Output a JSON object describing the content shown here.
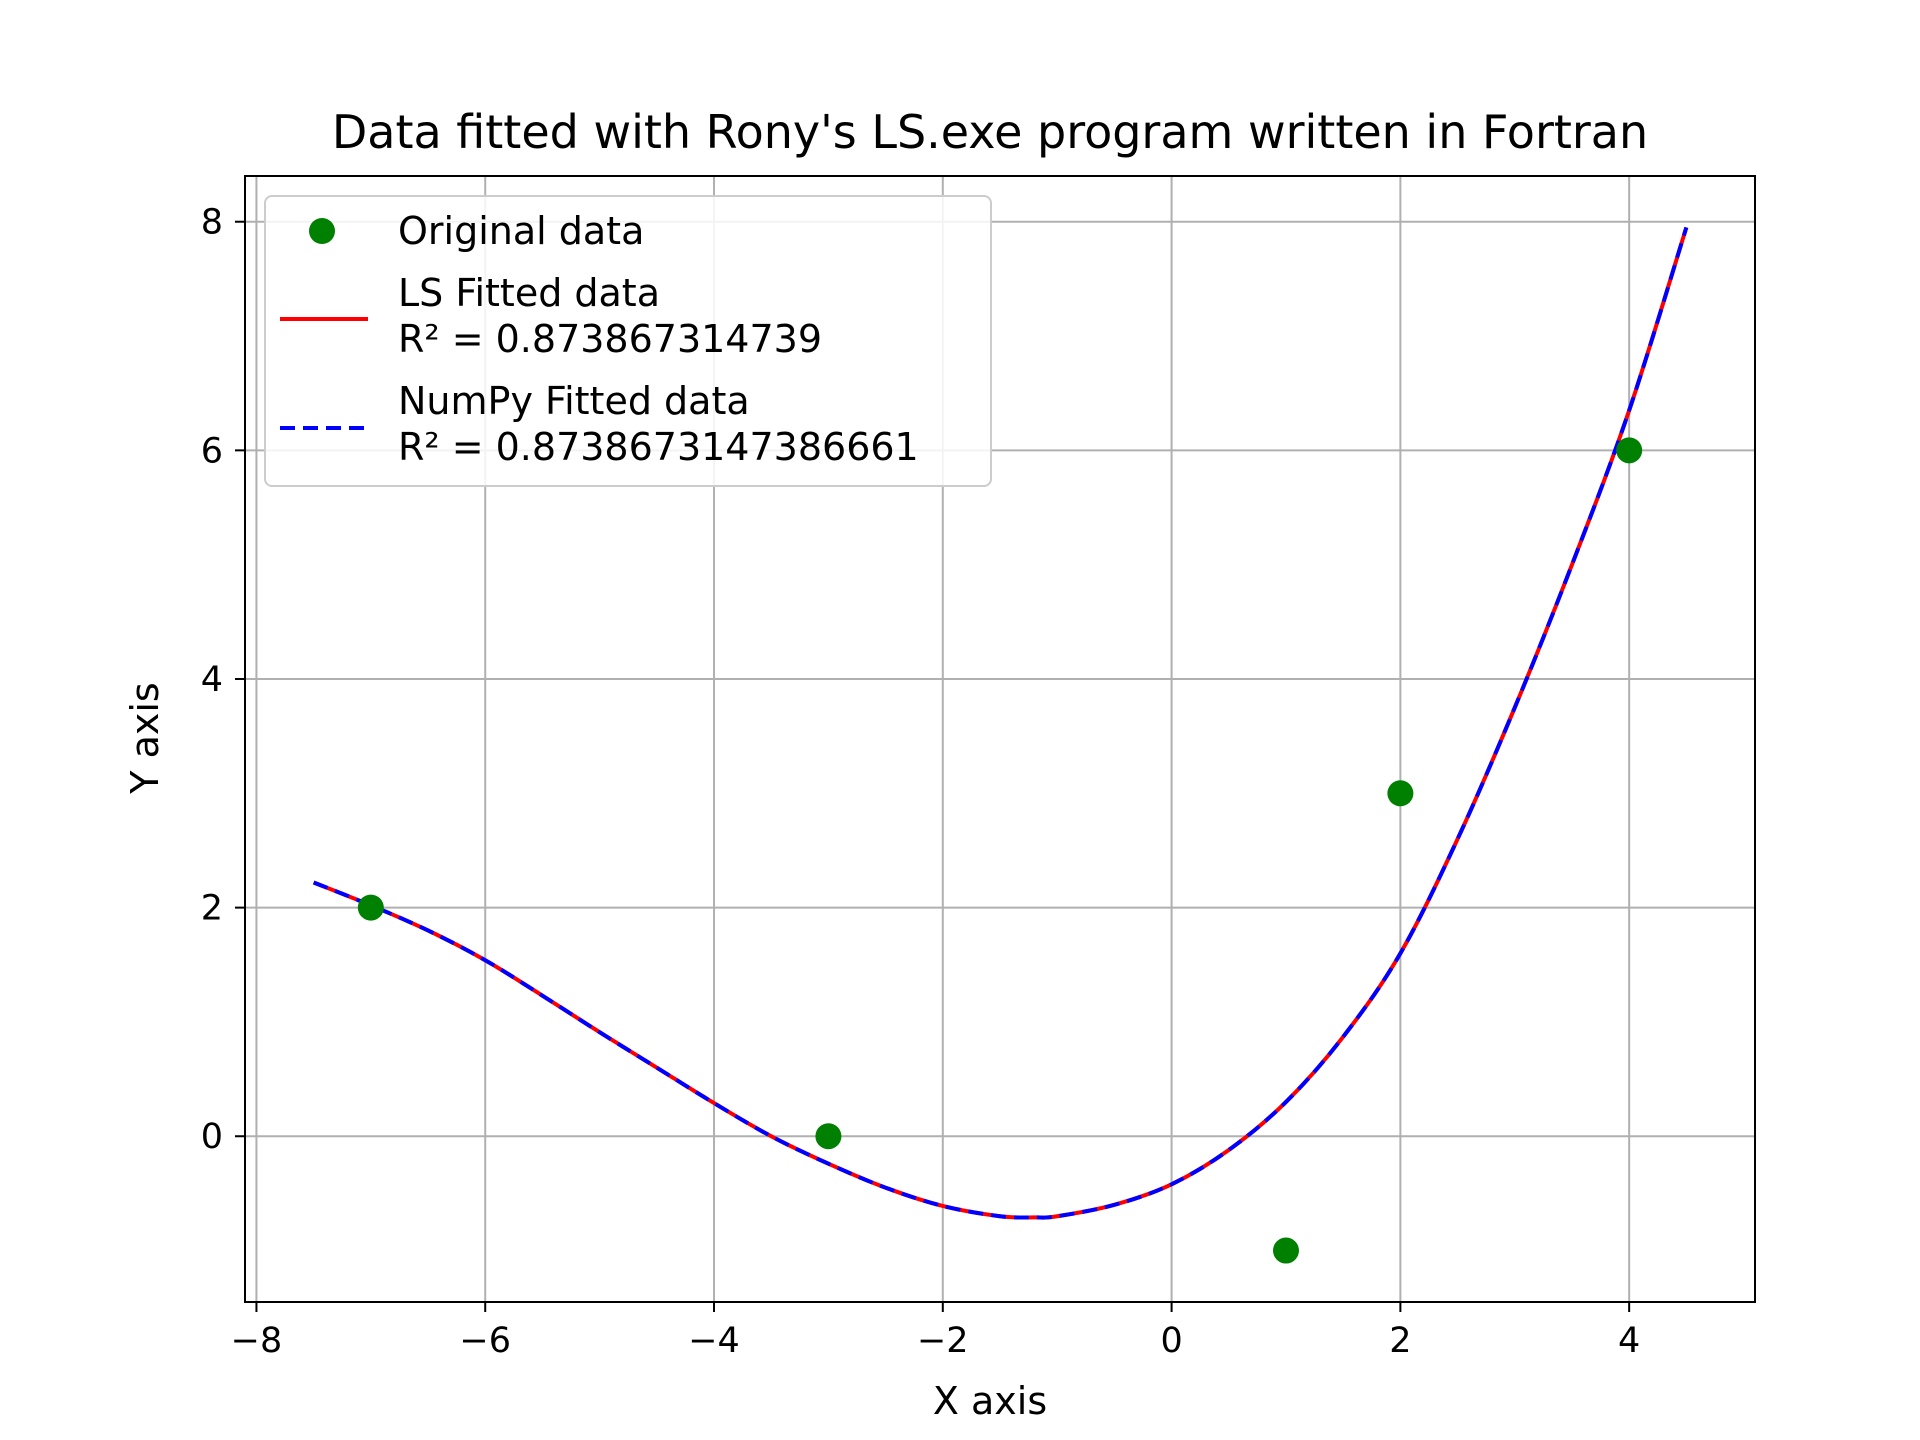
{
  "chart_data": {
    "type": "line",
    "title": "Data fitted with Rony's LS.exe program written in Fortran",
    "xlabel": "X axis",
    "ylabel": "Y axis",
    "xlim": [
      -8.1,
      5.1
    ],
    "ylim": [
      -1.45,
      8.4
    ],
    "xticks": [
      -8,
      -6,
      -4,
      -2,
      0,
      2,
      4
    ],
    "xtick_labels": [
      "−8",
      "−6",
      "−4",
      "−2",
      "0",
      "2",
      "4"
    ],
    "yticks": [
      0,
      2,
      4,
      6,
      8
    ],
    "ytick_labels": [
      "0",
      "2",
      "4",
      "6",
      "8"
    ],
    "grid": true,
    "legend_position": "upper-left",
    "series": [
      {
        "name": "Original data",
        "kind": "scatter",
        "color": "#008000",
        "x": [
          -7,
          -3,
          1,
          2,
          4
        ],
        "y": [
          2,
          0,
          -1,
          3,
          6
        ]
      },
      {
        "name": "LS Fitted data",
        "legend_sub": "R² = 0.873867314739",
        "kind": "line",
        "style": "solid",
        "color": "#ff0000",
        "x": [
          -7.5,
          -7.0,
          -6.5,
          -6.0,
          -5.5,
          -5.0,
          -4.5,
          -4.0,
          -3.5,
          -3.0,
          -2.5,
          -2.0,
          -1.5,
          -1.2,
          -1.0,
          -0.5,
          0.0,
          0.5,
          1.0,
          1.5,
          2.0,
          2.5,
          3.0,
          3.5,
          4.0,
          4.5
        ],
        "y": [
          2.22,
          2.02,
          1.8,
          1.54,
          1.23,
          0.91,
          0.6,
          0.29,
          0.0,
          -0.24,
          -0.45,
          -0.61,
          -0.7,
          -0.71,
          -0.7,
          -0.6,
          -0.42,
          -0.12,
          0.3,
          0.87,
          1.6,
          2.6,
          3.75,
          5.0,
          6.35,
          7.95
        ]
      },
      {
        "name": "NumPy Fitted data",
        "legend_sub": "R² = 0.8738673147386661",
        "kind": "line",
        "style": "dashed",
        "color": "#0000ff",
        "x": [
          -7.5,
          -7.0,
          -6.5,
          -6.0,
          -5.5,
          -5.0,
          -4.5,
          -4.0,
          -3.5,
          -3.0,
          -2.5,
          -2.0,
          -1.5,
          -1.2,
          -1.0,
          -0.5,
          0.0,
          0.5,
          1.0,
          1.5,
          2.0,
          2.5,
          3.0,
          3.5,
          4.0,
          4.5
        ],
        "y": [
          2.22,
          2.02,
          1.8,
          1.54,
          1.23,
          0.91,
          0.6,
          0.29,
          0.0,
          -0.24,
          -0.45,
          -0.61,
          -0.7,
          -0.71,
          -0.7,
          -0.6,
          -0.42,
          -0.12,
          0.3,
          0.87,
          1.6,
          2.6,
          3.75,
          5.0,
          6.35,
          7.95
        ]
      }
    ]
  }
}
